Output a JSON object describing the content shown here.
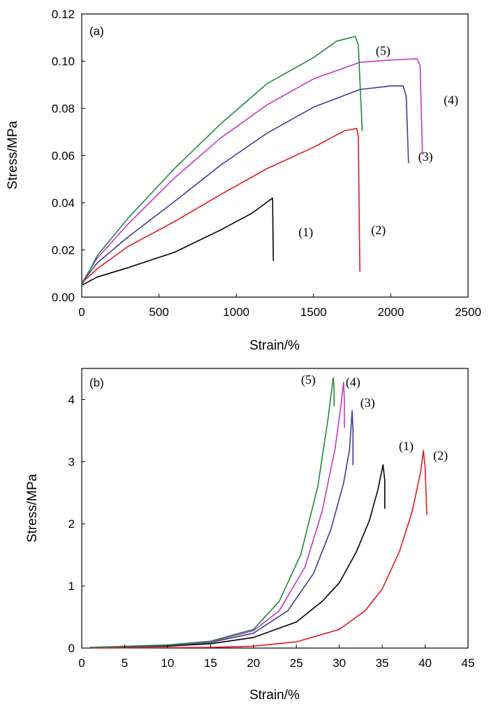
{
  "chart_data": [
    {
      "type": "line",
      "panel_label": "(a)",
      "xlabel": "Strain/%",
      "ylabel": "Stress/MPa",
      "xlim": [
        0,
        2500
      ],
      "ylim": [
        0,
        0.12
      ],
      "xticks": [
        0,
        500,
        1000,
        1500,
        2000,
        2500
      ],
      "yticks": [
        0.0,
        0.02,
        0.04,
        0.06,
        0.08,
        0.1,
        0.12
      ],
      "ytick_labels": [
        "0.00",
        "0.02",
        "0.04",
        "0.06",
        "0.08",
        "0.10",
        "0.12"
      ],
      "grid": false,
      "legend": "none",
      "series": [
        {
          "name": "(1)",
          "color": "#000000",
          "label_at": [
            1450,
            0.0275
          ],
          "points": [
            [
              0,
              0.005
            ],
            [
              100,
              0.0085
            ],
            [
              300,
              0.0125
            ],
            [
              600,
              0.019
            ],
            [
              900,
              0.0285
            ],
            [
              1100,
              0.0355
            ],
            [
              1235,
              0.042
            ],
            [
              1240,
              0.0155
            ]
          ]
        },
        {
          "name": "(2)",
          "color": "#e0191e",
          "label_at": [
            1920,
            0.0285
          ],
          "points": [
            [
              0,
              0.006
            ],
            [
              100,
              0.012
            ],
            [
              300,
              0.0215
            ],
            [
              600,
              0.032
            ],
            [
              900,
              0.0435
            ],
            [
              1200,
              0.0545
            ],
            [
              1500,
              0.0635
            ],
            [
              1700,
              0.0705
            ],
            [
              1780,
              0.0715
            ],
            [
              1790,
              0.068
            ],
            [
              1800,
              0.011
            ]
          ]
        },
        {
          "name": "(3)",
          "color": "#3b3c96",
          "label_at": [
            2225,
            0.0595
          ],
          "points": [
            [
              0,
              0.006
            ],
            [
              100,
              0.0145
            ],
            [
              300,
              0.0255
            ],
            [
              600,
              0.0405
            ],
            [
              900,
              0.056
            ],
            [
              1200,
              0.0695
            ],
            [
              1500,
              0.0805
            ],
            [
              1800,
              0.088
            ],
            [
              2000,
              0.0895
            ],
            [
              2080,
              0.0895
            ],
            [
              2100,
              0.085
            ],
            [
              2115,
              0.057
            ]
          ]
        },
        {
          "name": "(4)",
          "color": "#c437c1",
          "label_at": [
            2390,
            0.0835
          ],
          "points": [
            [
              0,
              0.006
            ],
            [
              100,
              0.0165
            ],
            [
              300,
              0.031
            ],
            [
              600,
              0.0505
            ],
            [
              900,
              0.0675
            ],
            [
              1200,
              0.0815
            ],
            [
              1500,
              0.0925
            ],
            [
              1800,
              0.0995
            ],
            [
              2000,
              0.1005
            ],
            [
              2170,
              0.101
            ],
            [
              2190,
              0.098
            ],
            [
              2205,
              0.0605
            ]
          ]
        },
        {
          "name": "(5)",
          "color": "#1a8a3c",
          "label_at": [
            1950,
            0.1045
          ],
          "points": [
            [
              0,
              0.005
            ],
            [
              100,
              0.0175
            ],
            [
              300,
              0.0335
            ],
            [
              600,
              0.0545
            ],
            [
              900,
              0.0735
            ],
            [
              1200,
              0.0905
            ],
            [
              1500,
              0.1015
            ],
            [
              1650,
              0.1085
            ],
            [
              1770,
              0.1105
            ],
            [
              1790,
              0.107
            ],
            [
              1815,
              0.0705
            ]
          ]
        }
      ]
    },
    {
      "type": "line",
      "panel_label": "(b)",
      "xlabel": "Strain/%",
      "ylabel": "Stress/MPa",
      "xlim": [
        0,
        45
      ],
      "ylim": [
        0,
        4.5
      ],
      "xticks": [
        0,
        5,
        10,
        15,
        20,
        25,
        30,
        35,
        40,
        45
      ],
      "yticks": [
        0,
        1,
        2,
        3,
        4
      ],
      "grid": false,
      "legend": "none",
      "series": [
        {
          "name": "(1)",
          "color": "#000000",
          "label_at": [
            37.8,
            3.25
          ],
          "points": [
            [
              1,
              0.01
            ],
            [
              10,
              0.03
            ],
            [
              15,
              0.07
            ],
            [
              20,
              0.17
            ],
            [
              25,
              0.42
            ],
            [
              28,
              0.75
            ],
            [
              30,
              1.05
            ],
            [
              32,
              1.55
            ],
            [
              33.5,
              2.05
            ],
            [
              34.5,
              2.55
            ],
            [
              35.1,
              2.95
            ],
            [
              35.3,
              2.7
            ],
            [
              35.3,
              2.25
            ]
          ]
        },
        {
          "name": "(2)",
          "color": "#e0191e",
          "label_at": [
            41.8,
            3.1
          ],
          "points": [
            [
              1,
              0.0
            ],
            [
              15,
              0.01
            ],
            [
              20,
              0.03
            ],
            [
              25,
              0.1
            ],
            [
              30,
              0.3
            ],
            [
              33,
              0.6
            ],
            [
              35,
              0.95
            ],
            [
              37,
              1.55
            ],
            [
              38.5,
              2.2
            ],
            [
              39.5,
              2.85
            ],
            [
              39.8,
              3.18
            ],
            [
              40,
              2.9
            ],
            [
              40.2,
              2.15
            ]
          ]
        },
        {
          "name": "(3)",
          "color": "#3b3c96",
          "label_at": [
            33.3,
            3.95
          ],
          "points": [
            [
              1,
              0.01
            ],
            [
              10,
              0.04
            ],
            [
              15,
              0.09
            ],
            [
              20,
              0.24
            ],
            [
              24,
              0.6
            ],
            [
              27,
              1.2
            ],
            [
              29,
              1.9
            ],
            [
              30.5,
              2.65
            ],
            [
              31.2,
              3.2
            ],
            [
              31.5,
              3.82
            ],
            [
              31.6,
              3.5
            ],
            [
              31.6,
              2.95
            ]
          ]
        },
        {
          "name": "(4)",
          "color": "#c437c1",
          "label_at": [
            31.6,
            4.28
          ],
          "points": [
            [
              1,
              0.01
            ],
            [
              10,
              0.05
            ],
            [
              15,
              0.1
            ],
            [
              20,
              0.28
            ],
            [
              23,
              0.6
            ],
            [
              26,
              1.3
            ],
            [
              28,
              2.2
            ],
            [
              29.5,
              3.2
            ],
            [
              30.2,
              3.9
            ],
            [
              30.5,
              4.28
            ],
            [
              30.6,
              4.0
            ],
            [
              30.6,
              3.55
            ]
          ]
        },
        {
          "name": "(5)",
          "color": "#1a8a3c",
          "label_at": [
            26.4,
            4.32
          ],
          "points": [
            [
              1,
              0.01
            ],
            [
              10,
              0.05
            ],
            [
              15,
              0.11
            ],
            [
              20,
              0.3
            ],
            [
              23,
              0.75
            ],
            [
              25.5,
              1.5
            ],
            [
              27.5,
              2.6
            ],
            [
              28.7,
              3.7
            ],
            [
              29.3,
              4.35
            ],
            [
              29.4,
              4.15
            ],
            [
              29.4,
              3.9
            ]
          ]
        }
      ]
    }
  ]
}
